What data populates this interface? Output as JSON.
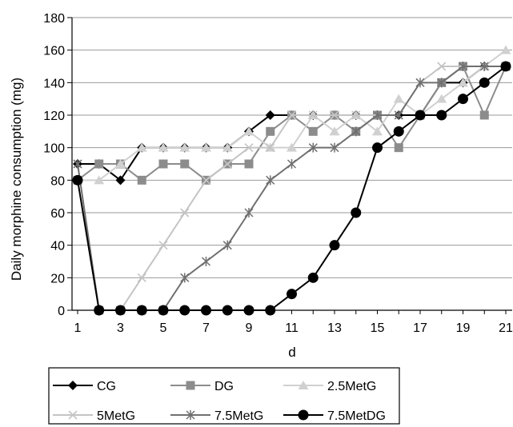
{
  "chart_data": {
    "type": "line",
    "title": "",
    "xlabel": "d",
    "ylabel": "Daily morphine consumption (mg)",
    "xlim": [
      1,
      21
    ],
    "ylim": [
      0,
      180
    ],
    "x_ticks": [
      1,
      3,
      5,
      7,
      9,
      11,
      13,
      15,
      17,
      19,
      21
    ],
    "y_ticks": [
      0,
      20,
      40,
      60,
      80,
      100,
      120,
      140,
      160,
      180
    ],
    "grid": "horizontal",
    "legend_position": "bottom",
    "x": [
      1,
      2,
      3,
      4,
      5,
      6,
      7,
      8,
      9,
      10,
      11,
      12,
      13,
      14,
      15,
      16,
      17,
      18,
      19,
      20,
      21
    ],
    "series": [
      {
        "name": "CG",
        "color": "#000000",
        "marker": "diamond",
        "values": [
          90,
          90,
          80,
          100,
          100,
          100,
          100,
          100,
          110,
          120,
          120,
          120,
          120,
          120,
          120,
          120,
          120,
          140,
          140,
          150,
          150
        ]
      },
      {
        "name": "DG",
        "color": "#8c8c8c",
        "marker": "square",
        "values": [
          80,
          90,
          90,
          80,
          90,
          90,
          80,
          90,
          90,
          110,
          120,
          110,
          120,
          110,
          120,
          100,
          120,
          140,
          150,
          120,
          150
        ]
      },
      {
        "name": "2.5MetG",
        "color": "#d0d0d0",
        "marker": "triangle",
        "values": [
          80,
          80,
          90,
          100,
          100,
          100,
          100,
          100,
          110,
          100,
          100,
          120,
          110,
          120,
          110,
          130,
          120,
          130,
          140,
          150,
          160
        ]
      },
      {
        "name": "5MetG",
        "color": "#c4c4c4",
        "marker": "x",
        "values": [
          90,
          0,
          0,
          20,
          40,
          60,
          80,
          90,
          100,
          100,
          120,
          120,
          120,
          120,
          120,
          120,
          140,
          150,
          150,
          150,
          150
        ]
      },
      {
        "name": "7.5MetG",
        "color": "#707070",
        "marker": "star",
        "values": [
          90,
          0,
          0,
          0,
          0,
          20,
          30,
          40,
          60,
          80,
          90,
          100,
          100,
          110,
          120,
          120,
          140,
          140,
          150,
          150,
          150
        ]
      },
      {
        "name": "7.5MetDG",
        "color": "#000000",
        "marker": "circle",
        "values": [
          80,
          0,
          0,
          0,
          0,
          0,
          0,
          0,
          0,
          0,
          10,
          20,
          40,
          60,
          100,
          110,
          120,
          120,
          130,
          140,
          150
        ]
      }
    ]
  }
}
